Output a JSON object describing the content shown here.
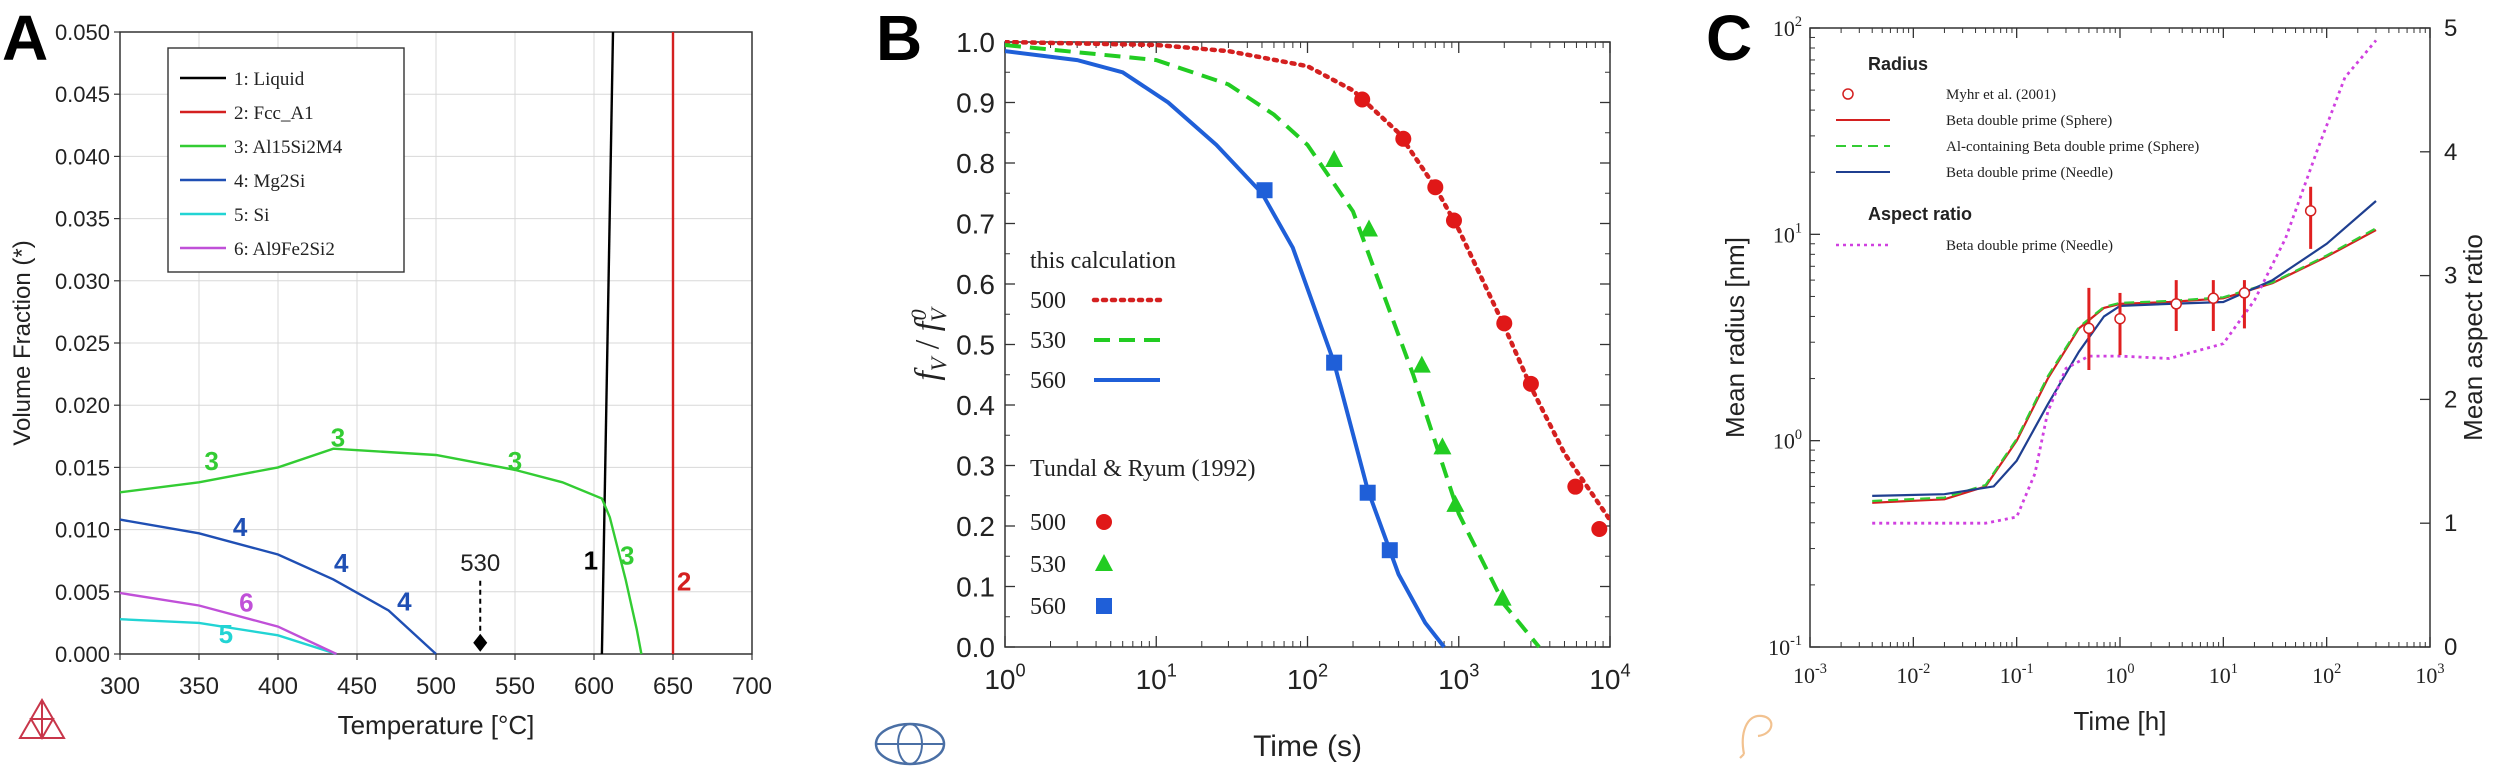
{
  "chart_data": [
    {
      "panel_letter": "A",
      "type": "line",
      "xlabel": "Temperature [°C]",
      "ylabel": "Volume Fraction (*)",
      "xlim": [
        300,
        700
      ],
      "ylim": [
        0,
        0.05
      ],
      "x_ticks": [
        "300",
        "350",
        "400",
        "450",
        "500",
        "550",
        "600",
        "650",
        "700"
      ],
      "y_ticks": [
        "0.000",
        "0.005",
        "0.010",
        "0.015",
        "0.020",
        "0.025",
        "0.030",
        "0.035",
        "0.040",
        "0.045",
        "0.050"
      ],
      "grid": true,
      "legend_position": "top-left",
      "legend": [
        "1: Liquid",
        "2: Fcc_A1",
        "3: Al15Si2M4",
        "4: Mg2Si",
        "5: Si",
        "6: Al9Fe2Si2"
      ],
      "series": [
        {
          "name": "1: Liquid",
          "label": "1",
          "color": "#000000",
          "points": [
            [
              605,
              0
            ],
            [
              612,
              0.05
            ]
          ]
        },
        {
          "name": "2: Fcc_A1",
          "label": "2",
          "color": "#d42020",
          "points": [
            [
              650,
              0
            ],
            [
              650,
              0.05
            ]
          ]
        },
        {
          "name": "3: Al15Si2M4",
          "label": "3",
          "color": "#33cc33",
          "points": [
            [
              300,
              0.013
            ],
            [
              350,
              0.0138
            ],
            [
              400,
              0.015
            ],
            [
              435,
              0.0165
            ],
            [
              500,
              0.016
            ],
            [
              550,
              0.0148
            ],
            [
              580,
              0.0138
            ],
            [
              605,
              0.0125
            ],
            [
              610,
              0.011
            ],
            [
              620,
              0.006
            ],
            [
              627,
              0.002
            ],
            [
              630,
              0
            ]
          ]
        },
        {
          "name": "4: Mg2Si",
          "label": "4",
          "color": "#1f4fb4",
          "points": [
            [
              300,
              0.0108
            ],
            [
              350,
              0.0097
            ],
            [
              400,
              0.008
            ],
            [
              435,
              0.006
            ],
            [
              470,
              0.0035
            ],
            [
              500,
              0
            ]
          ]
        },
        {
          "name": "5: Si",
          "label": "5",
          "color": "#22d4d4",
          "points": [
            [
              300,
              0.0028
            ],
            [
              350,
              0.0025
            ],
            [
              400,
              0.0015
            ],
            [
              437,
              0
            ]
          ]
        },
        {
          "name": "6: Al9Fe2Si2",
          "label": "6",
          "color": "#c050d8",
          "points": [
            [
              300,
              0.0049
            ],
            [
              350,
              0.0039
            ],
            [
              400,
              0.0022
            ],
            [
              437,
              0
            ]
          ]
        }
      ],
      "curve_labels": [
        {
          "text": "3",
          "x": 358,
          "y": 0.0148
        },
        {
          "text": "3",
          "x": 438,
          "y": 0.0167
        },
        {
          "text": "3",
          "x": 550,
          "y": 0.0148
        },
        {
          "text": "3",
          "x": 621,
          "y": 0.0072
        },
        {
          "text": "4",
          "x": 376,
          "y": 0.0095
        },
        {
          "text": "4",
          "x": 440,
          "y": 0.0066
        },
        {
          "text": "4",
          "x": 480,
          "y": 0.0035
        },
        {
          "text": "5",
          "x": 367,
          "y": 0.0009
        },
        {
          "text": "6",
          "x": 380,
          "y": 0.0034
        },
        {
          "text": "1",
          "x": 598,
          "y": 0.0068
        },
        {
          "text": "2",
          "x": 657,
          "y": 0.0051
        }
      ],
      "annotation": {
        "text": "530",
        "x": 528,
        "y": 0.0009
      }
    },
    {
      "panel_letter": "B",
      "type": "line",
      "xlabel": "Time (s)",
      "ylabel_main": "f",
      "ylabel_sub": "V",
      "ylabel_sup": "0",
      "xscale": "log",
      "xlim": [
        1,
        10000
      ],
      "ylim": [
        0,
        1.0
      ],
      "x_ticks": [
        {
          "base": "10",
          "exp": "0"
        },
        {
          "base": "10",
          "exp": "1"
        },
        {
          "base": "10",
          "exp": "2"
        },
        {
          "base": "10",
          "exp": "3"
        },
        {
          "base": "10",
          "exp": "4"
        }
      ],
      "y_ticks": [
        "0.0",
        "0.1",
        "0.2",
        "0.3",
        "0.4",
        "0.5",
        "0.6",
        "0.7",
        "0.8",
        "0.9",
        "1.0"
      ],
      "legend_heading_calc": "this calculation",
      "legend_heading_exp": "Tundal & Ryum (1992)",
      "series": [
        {
          "name": "500",
          "kind": "calc",
          "style": "dotted",
          "color": "#d42020",
          "points": [
            [
              1,
              1.0
            ],
            [
              10,
              0.995
            ],
            [
              30,
              0.985
            ],
            [
              100,
              0.96
            ],
            [
              200,
              0.92
            ],
            [
              400,
              0.85
            ],
            [
              700,
              0.76
            ],
            [
              1000,
              0.69
            ],
            [
              2000,
              0.53
            ],
            [
              3000,
              0.43
            ],
            [
              5000,
              0.32
            ],
            [
              10000,
              0.21
            ]
          ]
        },
        {
          "name": "530",
          "kind": "calc",
          "style": "dashed",
          "color": "#22cc22",
          "points": [
            [
              1,
              0.995
            ],
            [
              10,
              0.97
            ],
            [
              30,
              0.93
            ],
            [
              60,
              0.88
            ],
            [
              100,
              0.83
            ],
            [
              200,
              0.72
            ],
            [
              300,
              0.6
            ],
            [
              500,
              0.45
            ],
            [
              1000,
              0.22
            ],
            [
              2000,
              0.07
            ],
            [
              3400,
              0
            ]
          ]
        },
        {
          "name": "560",
          "kind": "calc",
          "style": "solid",
          "color": "#1f5fd8",
          "points": [
            [
              1,
              0.985
            ],
            [
              3,
              0.97
            ],
            [
              6,
              0.95
            ],
            [
              12,
              0.9
            ],
            [
              25,
              0.83
            ],
            [
              50,
              0.75
            ],
            [
              80,
              0.66
            ],
            [
              150,
              0.47
            ],
            [
              250,
              0.26
            ],
            [
              400,
              0.12
            ],
            [
              600,
              0.04
            ],
            [
              800,
              0
            ]
          ]
        },
        {
          "name": "500",
          "kind": "exp",
          "marker": "circle",
          "color": "#e01818",
          "points": [
            [
              230,
              0.905
            ],
            [
              430,
              0.84
            ],
            [
              700,
              0.76
            ],
            [
              930,
              0.705
            ],
            [
              2000,
              0.535
            ],
            [
              3000,
              0.435
            ],
            [
              5900,
              0.265
            ],
            [
              8500,
              0.195
            ]
          ]
        },
        {
          "name": "530",
          "kind": "exp",
          "marker": "triangle",
          "color": "#22cc22",
          "points": [
            [
              150,
              0.805
            ],
            [
              255,
              0.69
            ],
            [
              570,
              0.465
            ],
            [
              780,
              0.33
            ],
            [
              950,
              0.235
            ],
            [
              1950,
              0.08
            ]
          ]
        },
        {
          "name": "560",
          "kind": "exp",
          "marker": "square",
          "color": "#1f5fd8",
          "points": [
            [
              52,
              0.755
            ],
            [
              150,
              0.47
            ],
            [
              250,
              0.255
            ],
            [
              350,
              0.16
            ]
          ]
        }
      ]
    },
    {
      "panel_letter": "C",
      "type": "line",
      "xlabel": "Time [h]",
      "ylabel": "Mean radius [nm]",
      "y2label": "Mean aspect ratio",
      "xscale": "log",
      "yscale": "log",
      "xlim": [
        0.001,
        1000
      ],
      "ylim": [
        0.1,
        100
      ],
      "y2lim": [
        0,
        5
      ],
      "x_ticks": [
        {
          "base": "10",
          "exp": "-3"
        },
        {
          "base": "10",
          "exp": "-2"
        },
        {
          "base": "10",
          "exp": "-1"
        },
        {
          "base": "10",
          "exp": "0"
        },
        {
          "base": "10",
          "exp": "1"
        },
        {
          "base": "10",
          "exp": "2"
        },
        {
          "base": "10",
          "exp": "3"
        }
      ],
      "y_ticks": [
        {
          "base": "10",
          "exp": "-1"
        },
        {
          "base": "10",
          "exp": "0"
        },
        {
          "base": "10",
          "exp": "1"
        },
        {
          "base": "10",
          "exp": "2"
        }
      ],
      "y2_ticks": [
        "0",
        "1",
        "2",
        "3",
        "4",
        "5"
      ],
      "legend_heading_radius": "Radius",
      "legend_heading_aspect": "Aspect ratio",
      "series": [
        {
          "name": "Myhr et al. (2001)",
          "kind": "exp",
          "axis": "left",
          "marker": "open-circle",
          "color": "#d42020",
          "points": [
            [
              0.5,
              3.5
            ],
            [
              1,
              3.9
            ],
            [
              3.5,
              4.6
            ],
            [
              8,
              4.9
            ],
            [
              16,
              5.2
            ],
            [
              70,
              13
            ]
          ],
          "errors": [
            [
              0.5,
              2.2,
              5.5
            ],
            [
              1,
              2.6,
              5.2
            ],
            [
              3.5,
              3.4,
              6.0
            ],
            [
              8,
              3.4,
              6.0
            ],
            [
              16,
              3.5,
              6.0
            ],
            [
              70,
              8.5,
              17
            ]
          ]
        },
        {
          "name": "Beta double prime (Sphere)",
          "kind": "calc",
          "axis": "left",
          "style": "solid",
          "color": "#d42020",
          "points": [
            [
              0.004,
              0.5
            ],
            [
              0.02,
              0.52
            ],
            [
              0.05,
              0.6
            ],
            [
              0.1,
              1.0
            ],
            [
              0.2,
              2.0
            ],
            [
              0.4,
              3.5
            ],
            [
              0.7,
              4.4
            ],
            [
              1,
              4.6
            ],
            [
              3,
              4.7
            ],
            [
              10,
              4.9
            ],
            [
              30,
              5.8
            ],
            [
              100,
              7.8
            ],
            [
              300,
              10.5
            ]
          ]
        },
        {
          "name": "Al-containing Beta double prime (Sphere)",
          "kind": "calc",
          "axis": "left",
          "style": "dashed",
          "color": "#33cc33",
          "points": [
            [
              0.004,
              0.51
            ],
            [
              0.02,
              0.53
            ],
            [
              0.05,
              0.61
            ],
            [
              0.1,
              1.02
            ],
            [
              0.2,
              2.05
            ],
            [
              0.4,
              3.55
            ],
            [
              0.7,
              4.45
            ],
            [
              1,
              4.65
            ],
            [
              3,
              4.75
            ],
            [
              10,
              4.95
            ],
            [
              30,
              5.85
            ],
            [
              100,
              7.9
            ],
            [
              300,
              10.7
            ]
          ]
        },
        {
          "name": "Beta double prime (Needle)",
          "kind": "calc",
          "axis": "left",
          "style": "solid",
          "color": "#1f3f90",
          "points": [
            [
              0.004,
              0.54
            ],
            [
              0.02,
              0.55
            ],
            [
              0.06,
              0.6
            ],
            [
              0.1,
              0.8
            ],
            [
              0.2,
              1.5
            ],
            [
              0.4,
              2.7
            ],
            [
              0.7,
              4.0
            ],
            [
              1,
              4.5
            ],
            [
              3,
              4.6
            ],
            [
              10,
              4.7
            ],
            [
              30,
              6.0
            ],
            [
              100,
              9.0
            ],
            [
              300,
              14.5
            ]
          ]
        },
        {
          "name": "Beta double prime (Needle)",
          "kind": "calc",
          "axis": "right",
          "group": "aspect",
          "style": "dotted",
          "color": "#d040e0",
          "points": [
            [
              0.004,
              1.0
            ],
            [
              0.05,
              1.0
            ],
            [
              0.1,
              1.05
            ],
            [
              0.15,
              1.4
            ],
            [
              0.2,
              1.9
            ],
            [
              0.3,
              2.25
            ],
            [
              0.5,
              2.35
            ],
            [
              1,
              2.35
            ],
            [
              3,
              2.33
            ],
            [
              10,
              2.45
            ],
            [
              20,
              2.8
            ],
            [
              40,
              3.3
            ],
            [
              80,
              4.0
            ],
            [
              150,
              4.6
            ],
            [
              300,
              4.9
            ]
          ]
        }
      ]
    }
  ]
}
